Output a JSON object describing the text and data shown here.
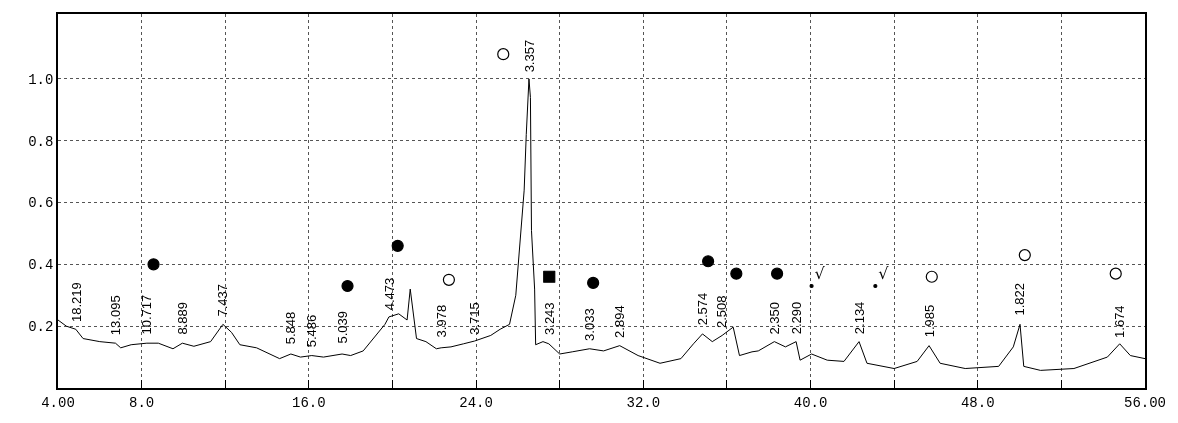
{
  "chart_data": {
    "type": "line",
    "x": [
      4.0,
      4.4,
      4.85,
      5.2,
      6.0,
      6.75,
      7.0,
      7.5,
      8.25,
      8.8,
      9.5,
      9.95,
      10.5,
      11.3,
      11.89,
      12.3,
      12.7,
      13.5,
      14.6,
      15.14,
      15.6,
      16.14,
      16.7,
      17.59,
      18.0,
      18.6,
      19.64,
      19.83,
      20.3,
      20.7,
      20.85,
      21.15,
      21.6,
      22.1,
      22.33,
      22.8,
      23.4,
      23.93,
      24.7,
      25.15,
      25.6,
      25.9,
      26.3,
      26.4,
      26.53,
      26.6,
      26.65,
      26.8,
      26.85,
      27.2,
      27.48,
      28.0,
      28.6,
      29.43,
      30.1,
      30.87,
      31.75,
      32.8,
      33.8,
      34.4,
      34.83,
      35.3,
      35.77,
      36.3,
      36.6,
      37.2,
      37.5,
      38.27,
      38.8,
      39.31,
      39.5,
      40.05,
      40.8,
      41.6,
      42.32,
      42.7,
      44.0,
      45.1,
      45.67,
      46.2,
      47.4,
      49.0,
      49.7,
      50.02,
      50.2,
      51.0,
      52.6,
      54.2,
      54.79,
      55.3,
      56.0
    ],
    "values": [
      0.22,
      0.2,
      0.19,
      0.16,
      0.15,
      0.145,
      0.13,
      0.14,
      0.145,
      0.145,
      0.127,
      0.145,
      0.135,
      0.15,
      0.206,
      0.18,
      0.14,
      0.13,
      0.095,
      0.11,
      0.1,
      0.105,
      0.1,
      0.11,
      0.105,
      0.12,
      0.206,
      0.23,
      0.24,
      0.22,
      0.32,
      0.16,
      0.15,
      0.127,
      0.13,
      0.133,
      0.143,
      0.152,
      0.17,
      0.19,
      0.206,
      0.3,
      0.64,
      0.82,
      1.0,
      0.94,
      0.51,
      0.32,
      0.14,
      0.15,
      0.143,
      0.11,
      0.117,
      0.127,
      0.12,
      0.137,
      0.105,
      0.08,
      0.095,
      0.143,
      0.175,
      0.15,
      0.17,
      0.197,
      0.105,
      0.117,
      0.12,
      0.15,
      0.133,
      0.15,
      0.09,
      0.11,
      0.09,
      0.086,
      0.15,
      0.08,
      0.063,
      0.086,
      0.137,
      0.08,
      0.063,
      0.07,
      0.133,
      0.206,
      0.07,
      0.057,
      0.063,
      0.1,
      0.143,
      0.105,
      0.095
    ],
    "color": "#000000",
    "xlim": [
      4.0,
      56.0
    ],
    "ylim": [
      0,
      1.21
    ],
    "xticks": [
      {
        "value": 4,
        "label": "4.00"
      },
      {
        "value": 8,
        "label": "8.0"
      },
      {
        "value": 12,
        "label": null
      },
      {
        "value": 16,
        "label": "16.0"
      },
      {
        "value": 20,
        "label": null
      },
      {
        "value": 24,
        "label": "24.0"
      },
      {
        "value": 28,
        "label": null
      },
      {
        "value": 32,
        "label": "32.0"
      },
      {
        "value": 36,
        "label": null
      },
      {
        "value": 40,
        "label": "40.0"
      },
      {
        "value": 44,
        "label": null
      },
      {
        "value": 48,
        "label": "48.0"
      },
      {
        "value": 52,
        "label": null
      },
      {
        "value": 56,
        "label": "56.00"
      }
    ],
    "yticks": [
      0.2,
      0.4,
      0.6,
      0.8,
      {
        "value": 1.0,
        "label": "1.0"
      }
    ],
    "grid": true,
    "line_style": "solid",
    "marker": "none",
    "annotations": [
      {
        "text": "18.219",
        "x": 4.85,
        "y": 0.19
      },
      {
        "text": "13.095",
        "x": 6.75,
        "y": 0.15
      },
      {
        "text": "10.717",
        "x": 8.25,
        "y": 0.15
      },
      {
        "text": "8.889",
        "x": 9.95,
        "y": 0.15
      },
      {
        "text": "7.437",
        "x": 11.89,
        "y": 0.21
      },
      {
        "text": "5.848",
        "x": 15.14,
        "y": 0.12
      },
      {
        "text": "5.486",
        "x": 16.14,
        "y": 0.11
      },
      {
        "text": "5.039",
        "x": 17.59,
        "y": 0.12
      },
      {
        "text": "4.473",
        "x": 19.83,
        "y": 0.23
      },
      {
        "text": "3.978",
        "x": 22.33,
        "y": 0.14
      },
      {
        "text": "3.715",
        "x": 23.93,
        "y": 0.15
      },
      {
        "text": "3.357",
        "x": 26.53,
        "y": 1.0
      },
      {
        "text": "3.243",
        "x": 27.48,
        "y": 0.15
      },
      {
        "text": "3.033",
        "x": 29.43,
        "y": 0.13
      },
      {
        "text": "2.894",
        "x": 30.87,
        "y": 0.14
      },
      {
        "text": "2.574",
        "x": 34.83,
        "y": 0.18
      },
      {
        "text": "2.508",
        "x": 35.77,
        "y": 0.17
      },
      {
        "text": "2.350",
        "x": 38.27,
        "y": 0.15
      },
      {
        "text": "2.290",
        "x": 39.31,
        "y": 0.15
      },
      {
        "text": "2.134",
        "x": 42.32,
        "y": 0.15
      },
      {
        "text": "1.985",
        "x": 45.67,
        "y": 0.14
      },
      {
        "text": "1.822",
        "x": 50.02,
        "y": 0.21
      },
      {
        "text": "1.674",
        "x": 54.79,
        "y": 0.14
      }
    ],
    "series": [
      {
        "type": "scatter",
        "marker": "circle",
        "color": "#000000",
        "x": [
          8.57,
          17.85,
          20.25,
          29.6,
          35.1,
          36.45,
          38.4
        ],
        "values": [
          0.4,
          0.33,
          0.46,
          0.34,
          0.41,
          0.37,
          0.37
        ]
      },
      {
        "type": "scatter",
        "marker": "circle",
        "color": "#ffffff",
        "x": [
          25.3,
          22.7,
          45.8,
          50.25,
          54.6
        ],
        "values": [
          1.08,
          0.35,
          0.36,
          0.43,
          0.37
        ]
      },
      {
        "type": "scatter",
        "marker": "square",
        "color": "#000000",
        "x": [
          27.5
        ],
        "values": [
          0.36
        ]
      },
      {
        "type": "scatter",
        "marker": "circle",
        "color": "#000000",
        "x": [
          40.05,
          43.1
        ],
        "values": [
          0.33,
          0.33
        ],
        "value_labels": [
          "√",
          "√"
        ]
      }
    ]
  }
}
